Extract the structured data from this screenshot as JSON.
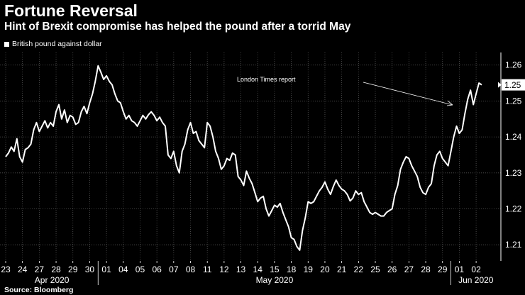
{
  "header": {
    "title": "Fortune Reversal",
    "subtitle": "Hint of Brexit compromise has helped the pound after a torrid May"
  },
  "source": "Source: Bloomberg",
  "colors": {
    "background": "#000000",
    "line": "#ffffff",
    "grid": "#555555"
  },
  "chart_data": {
    "type": "line",
    "series": [
      {
        "name": "British pound against dollar",
        "values": [
          1.2345,
          1.2355,
          1.2372,
          1.236,
          1.2395,
          1.2345,
          1.233,
          1.2365,
          1.237,
          1.238,
          1.242,
          1.244,
          1.2415,
          1.243,
          1.2445,
          1.2425,
          1.244,
          1.243,
          1.247,
          1.249,
          1.245,
          1.2475,
          1.244,
          1.246,
          1.2455,
          1.2435,
          1.244,
          1.247,
          1.2485,
          1.2465,
          1.2495,
          1.252,
          1.2555,
          1.2598,
          1.258,
          1.256,
          1.257,
          1.2555,
          1.2545,
          1.252,
          1.25,
          1.2495,
          1.247,
          1.245,
          1.246,
          1.2445,
          1.244,
          1.243,
          1.2445,
          1.246,
          1.245,
          1.2462,
          1.247,
          1.246,
          1.2445,
          1.2455,
          1.244,
          1.243,
          1.235,
          1.234,
          1.236,
          1.232,
          1.23,
          1.236,
          1.238,
          1.242,
          1.244,
          1.241,
          1.2415,
          1.239,
          1.238,
          1.237,
          1.244,
          1.243,
          1.24,
          1.236,
          1.234,
          1.231,
          1.232,
          1.234,
          1.2335,
          1.2355,
          1.235,
          1.229,
          1.228,
          1.2265,
          1.2305,
          1.2285,
          1.227,
          1.2245,
          1.222,
          1.223,
          1.2235,
          1.22,
          1.218,
          1.2195,
          1.221,
          1.2205,
          1.2215,
          1.219,
          1.217,
          1.215,
          1.212,
          1.2115,
          1.2095,
          1.2085,
          1.214,
          1.2175,
          1.222,
          1.2215,
          1.222,
          1.2235,
          1.225,
          1.226,
          1.2275,
          1.2255,
          1.224,
          1.2262,
          1.228,
          1.2265,
          1.2255,
          1.225,
          1.224,
          1.2222,
          1.223,
          1.225,
          1.224,
          1.2245,
          1.222,
          1.2205,
          1.219,
          1.2185,
          1.219,
          1.2185,
          1.218,
          1.218,
          1.219,
          1.2195,
          1.22,
          1.224,
          1.2265,
          1.231,
          1.233,
          1.2345,
          1.234,
          1.232,
          1.2305,
          1.229,
          1.226,
          1.2245,
          1.224,
          1.226,
          1.227,
          1.232,
          1.235,
          1.236,
          1.234,
          1.233,
          1.232,
          1.236,
          1.24,
          1.243,
          1.241,
          1.242,
          1.2465,
          1.2505,
          1.253,
          1.249,
          1.252,
          1.255,
          1.2545
        ]
      }
    ],
    "x_tick_labels": [
      "23",
      "24",
      "27",
      "28",
      "29",
      "30",
      "01",
      "04",
      "05",
      "06",
      "07",
      "08",
      "11",
      "12",
      "13",
      "14",
      "15",
      "18",
      "19",
      "20",
      "21",
      "22",
      "25",
      "26",
      "27",
      "28",
      "29",
      "01",
      "02"
    ],
    "x_tick_positions": [
      0,
      6,
      12,
      18,
      24,
      30,
      36,
      42,
      48,
      54,
      60,
      66,
      72,
      78,
      84,
      90,
      96,
      102,
      108,
      114,
      120,
      126,
      132,
      138,
      144,
      150,
      156,
      162,
      168
    ],
    "month_labels": [
      "Apr 2020",
      "May 2020",
      "Jun 2020"
    ],
    "y_ticks": [
      1.21,
      1.22,
      1.23,
      1.24,
      1.25,
      1.26
    ],
    "ylim": [
      1.2055,
      1.2635
    ],
    "grid": true,
    "last_value_label": "1.25",
    "annotations": [
      {
        "text": "London Times report"
      }
    ],
    "legend_position": "top-left"
  }
}
